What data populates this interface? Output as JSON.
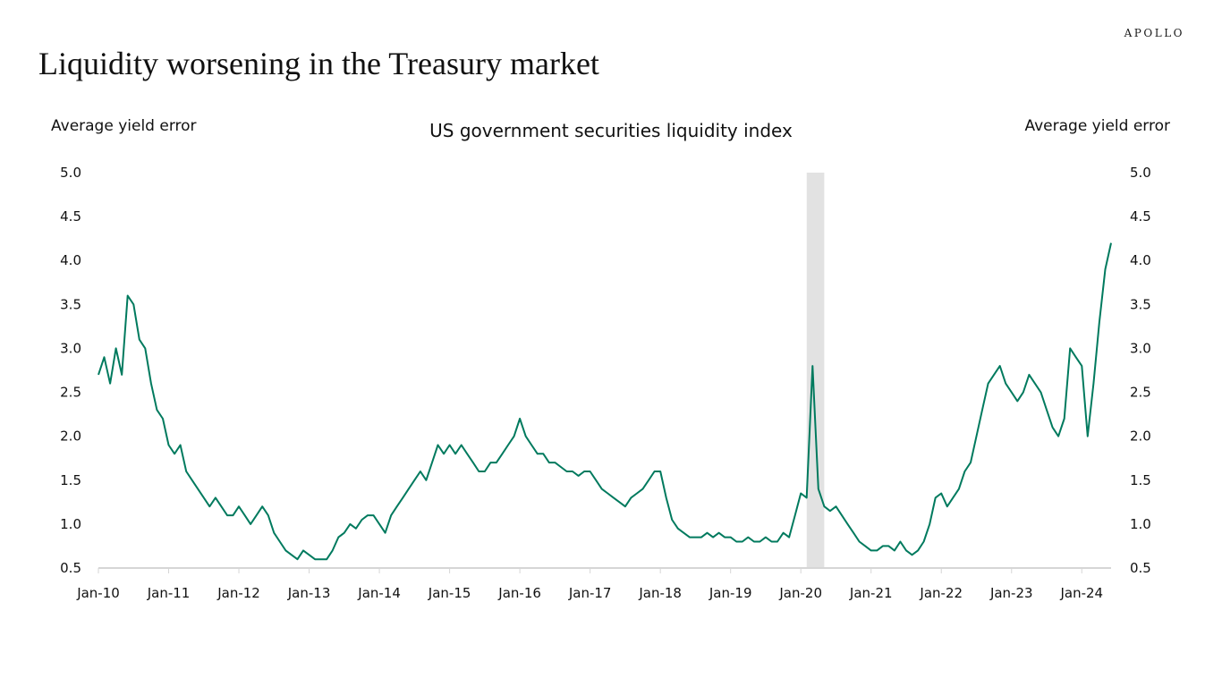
{
  "brand": "APOLLO",
  "title": "Liquidity worsening in the Treasury market",
  "colors": {
    "series": "#007a5e",
    "recession": "#e2e2e2",
    "axis": "#d6d6d6",
    "text": "#111111"
  },
  "chart_data": {
    "type": "line",
    "title": "US government securities liquidity index",
    "ylabel_left": "Average yield error",
    "ylabel_right": "Average yield error",
    "ylim": [
      0.5,
      5.0
    ],
    "yticks": [
      "0.5",
      "1.0",
      "1.5",
      "2.0",
      "2.5",
      "3.0",
      "3.5",
      "4.0",
      "4.5",
      "5.0"
    ],
    "xlim": [
      "2010-01",
      "2024-06"
    ],
    "xticks": [
      "Jan-10",
      "Jan-11",
      "Jan-12",
      "Jan-13",
      "Jan-14",
      "Jan-15",
      "Jan-16",
      "Jan-17",
      "Jan-18",
      "Jan-19",
      "Jan-20",
      "Jan-21",
      "Jan-22",
      "Jan-23",
      "Jan-24"
    ],
    "grid": false,
    "legend": "none",
    "shaded_periods": [
      {
        "start": "2020-02",
        "end": "2020-05"
      }
    ],
    "series": [
      {
        "name": "",
        "x": [
          "2010-01",
          "2010-02",
          "2010-03",
          "2010-04",
          "2010-05",
          "2010-06",
          "2010-07",
          "2010-08",
          "2010-09",
          "2010-10",
          "2010-11",
          "2010-12",
          "2011-01",
          "2011-02",
          "2011-03",
          "2011-04",
          "2011-05",
          "2011-06",
          "2011-07",
          "2011-08",
          "2011-09",
          "2011-10",
          "2011-11",
          "2011-12",
          "2012-01",
          "2012-02",
          "2012-03",
          "2012-04",
          "2012-05",
          "2012-06",
          "2012-07",
          "2012-08",
          "2012-09",
          "2012-10",
          "2012-11",
          "2012-12",
          "2013-01",
          "2013-02",
          "2013-03",
          "2013-04",
          "2013-05",
          "2013-06",
          "2013-07",
          "2013-08",
          "2013-09",
          "2013-10",
          "2013-11",
          "2013-12",
          "2014-01",
          "2014-02",
          "2014-03",
          "2014-04",
          "2014-05",
          "2014-06",
          "2014-07",
          "2014-08",
          "2014-09",
          "2014-10",
          "2014-11",
          "2014-12",
          "2015-01",
          "2015-02",
          "2015-03",
          "2015-04",
          "2015-05",
          "2015-06",
          "2015-07",
          "2015-08",
          "2015-09",
          "2015-10",
          "2015-11",
          "2015-12",
          "2016-01",
          "2016-02",
          "2016-03",
          "2016-04",
          "2016-05",
          "2016-06",
          "2016-07",
          "2016-08",
          "2016-09",
          "2016-10",
          "2016-11",
          "2016-12",
          "2017-01",
          "2017-02",
          "2017-03",
          "2017-04",
          "2017-05",
          "2017-06",
          "2017-07",
          "2017-08",
          "2017-09",
          "2017-10",
          "2017-11",
          "2017-12",
          "2018-01",
          "2018-02",
          "2018-03",
          "2018-04",
          "2018-05",
          "2018-06",
          "2018-07",
          "2018-08",
          "2018-09",
          "2018-10",
          "2018-11",
          "2018-12",
          "2019-01",
          "2019-02",
          "2019-03",
          "2019-04",
          "2019-05",
          "2019-06",
          "2019-07",
          "2019-08",
          "2019-09",
          "2019-10",
          "2019-11",
          "2019-12",
          "2020-01",
          "2020-02",
          "2020-03",
          "2020-04",
          "2020-05",
          "2020-06",
          "2020-07",
          "2020-08",
          "2020-09",
          "2020-10",
          "2020-11",
          "2020-12",
          "2021-01",
          "2021-02",
          "2021-03",
          "2021-04",
          "2021-05",
          "2021-06",
          "2021-07",
          "2021-08",
          "2021-09",
          "2021-10",
          "2021-11",
          "2021-12",
          "2022-01",
          "2022-02",
          "2022-03",
          "2022-04",
          "2022-05",
          "2022-06",
          "2022-07",
          "2022-08",
          "2022-09",
          "2022-10",
          "2022-11",
          "2022-12",
          "2023-01",
          "2023-02",
          "2023-03",
          "2023-04",
          "2023-05",
          "2023-06",
          "2023-07",
          "2023-08",
          "2023-09",
          "2023-10",
          "2023-11",
          "2023-12",
          "2024-01",
          "2024-02",
          "2024-03",
          "2024-04",
          "2024-05",
          "2024-06"
        ],
        "values": [
          2.7,
          2.9,
          2.6,
          3.0,
          2.7,
          3.6,
          3.5,
          3.1,
          3.0,
          2.6,
          2.3,
          2.2,
          1.9,
          1.8,
          1.9,
          1.6,
          1.5,
          1.4,
          1.3,
          1.2,
          1.3,
          1.2,
          1.1,
          1.1,
          1.2,
          1.1,
          1.0,
          1.1,
          1.2,
          1.1,
          0.9,
          0.8,
          0.7,
          0.65,
          0.6,
          0.7,
          0.65,
          0.6,
          0.6,
          0.6,
          0.7,
          0.85,
          0.9,
          1.0,
          0.95,
          1.05,
          1.1,
          1.1,
          1.0,
          0.9,
          1.1,
          1.2,
          1.3,
          1.4,
          1.5,
          1.6,
          1.5,
          1.7,
          1.9,
          1.8,
          1.9,
          1.8,
          1.9,
          1.8,
          1.7,
          1.6,
          1.6,
          1.7,
          1.7,
          1.8,
          1.9,
          2.0,
          2.2,
          2.0,
          1.9,
          1.8,
          1.8,
          1.7,
          1.7,
          1.65,
          1.6,
          1.6,
          1.55,
          1.6,
          1.6,
          1.5,
          1.4,
          1.35,
          1.3,
          1.25,
          1.2,
          1.3,
          1.35,
          1.4,
          1.5,
          1.6,
          1.6,
          1.3,
          1.05,
          0.95,
          0.9,
          0.85,
          0.85,
          0.85,
          0.9,
          0.85,
          0.9,
          0.85,
          0.85,
          0.8,
          0.8,
          0.85,
          0.8,
          0.8,
          0.85,
          0.8,
          0.8,
          0.9,
          0.85,
          1.1,
          1.35,
          1.3,
          2.8,
          1.4,
          1.2,
          1.15,
          1.2,
          1.1,
          1.0,
          0.9,
          0.8,
          0.75,
          0.7,
          0.7,
          0.75,
          0.75,
          0.7,
          0.8,
          0.7,
          0.65,
          0.7,
          0.8,
          1.0,
          1.3,
          1.35,
          1.2,
          1.3,
          1.4,
          1.6,
          1.7,
          2.0,
          2.3,
          2.6,
          2.7,
          2.8,
          2.6,
          2.5,
          2.4,
          2.5,
          2.7,
          2.6,
          2.5,
          2.3,
          2.1,
          2.0,
          2.2,
          3.0,
          2.9,
          2.8,
          2.0,
          2.6,
          3.3,
          3.9,
          4.2
        ]
      }
    ]
  }
}
